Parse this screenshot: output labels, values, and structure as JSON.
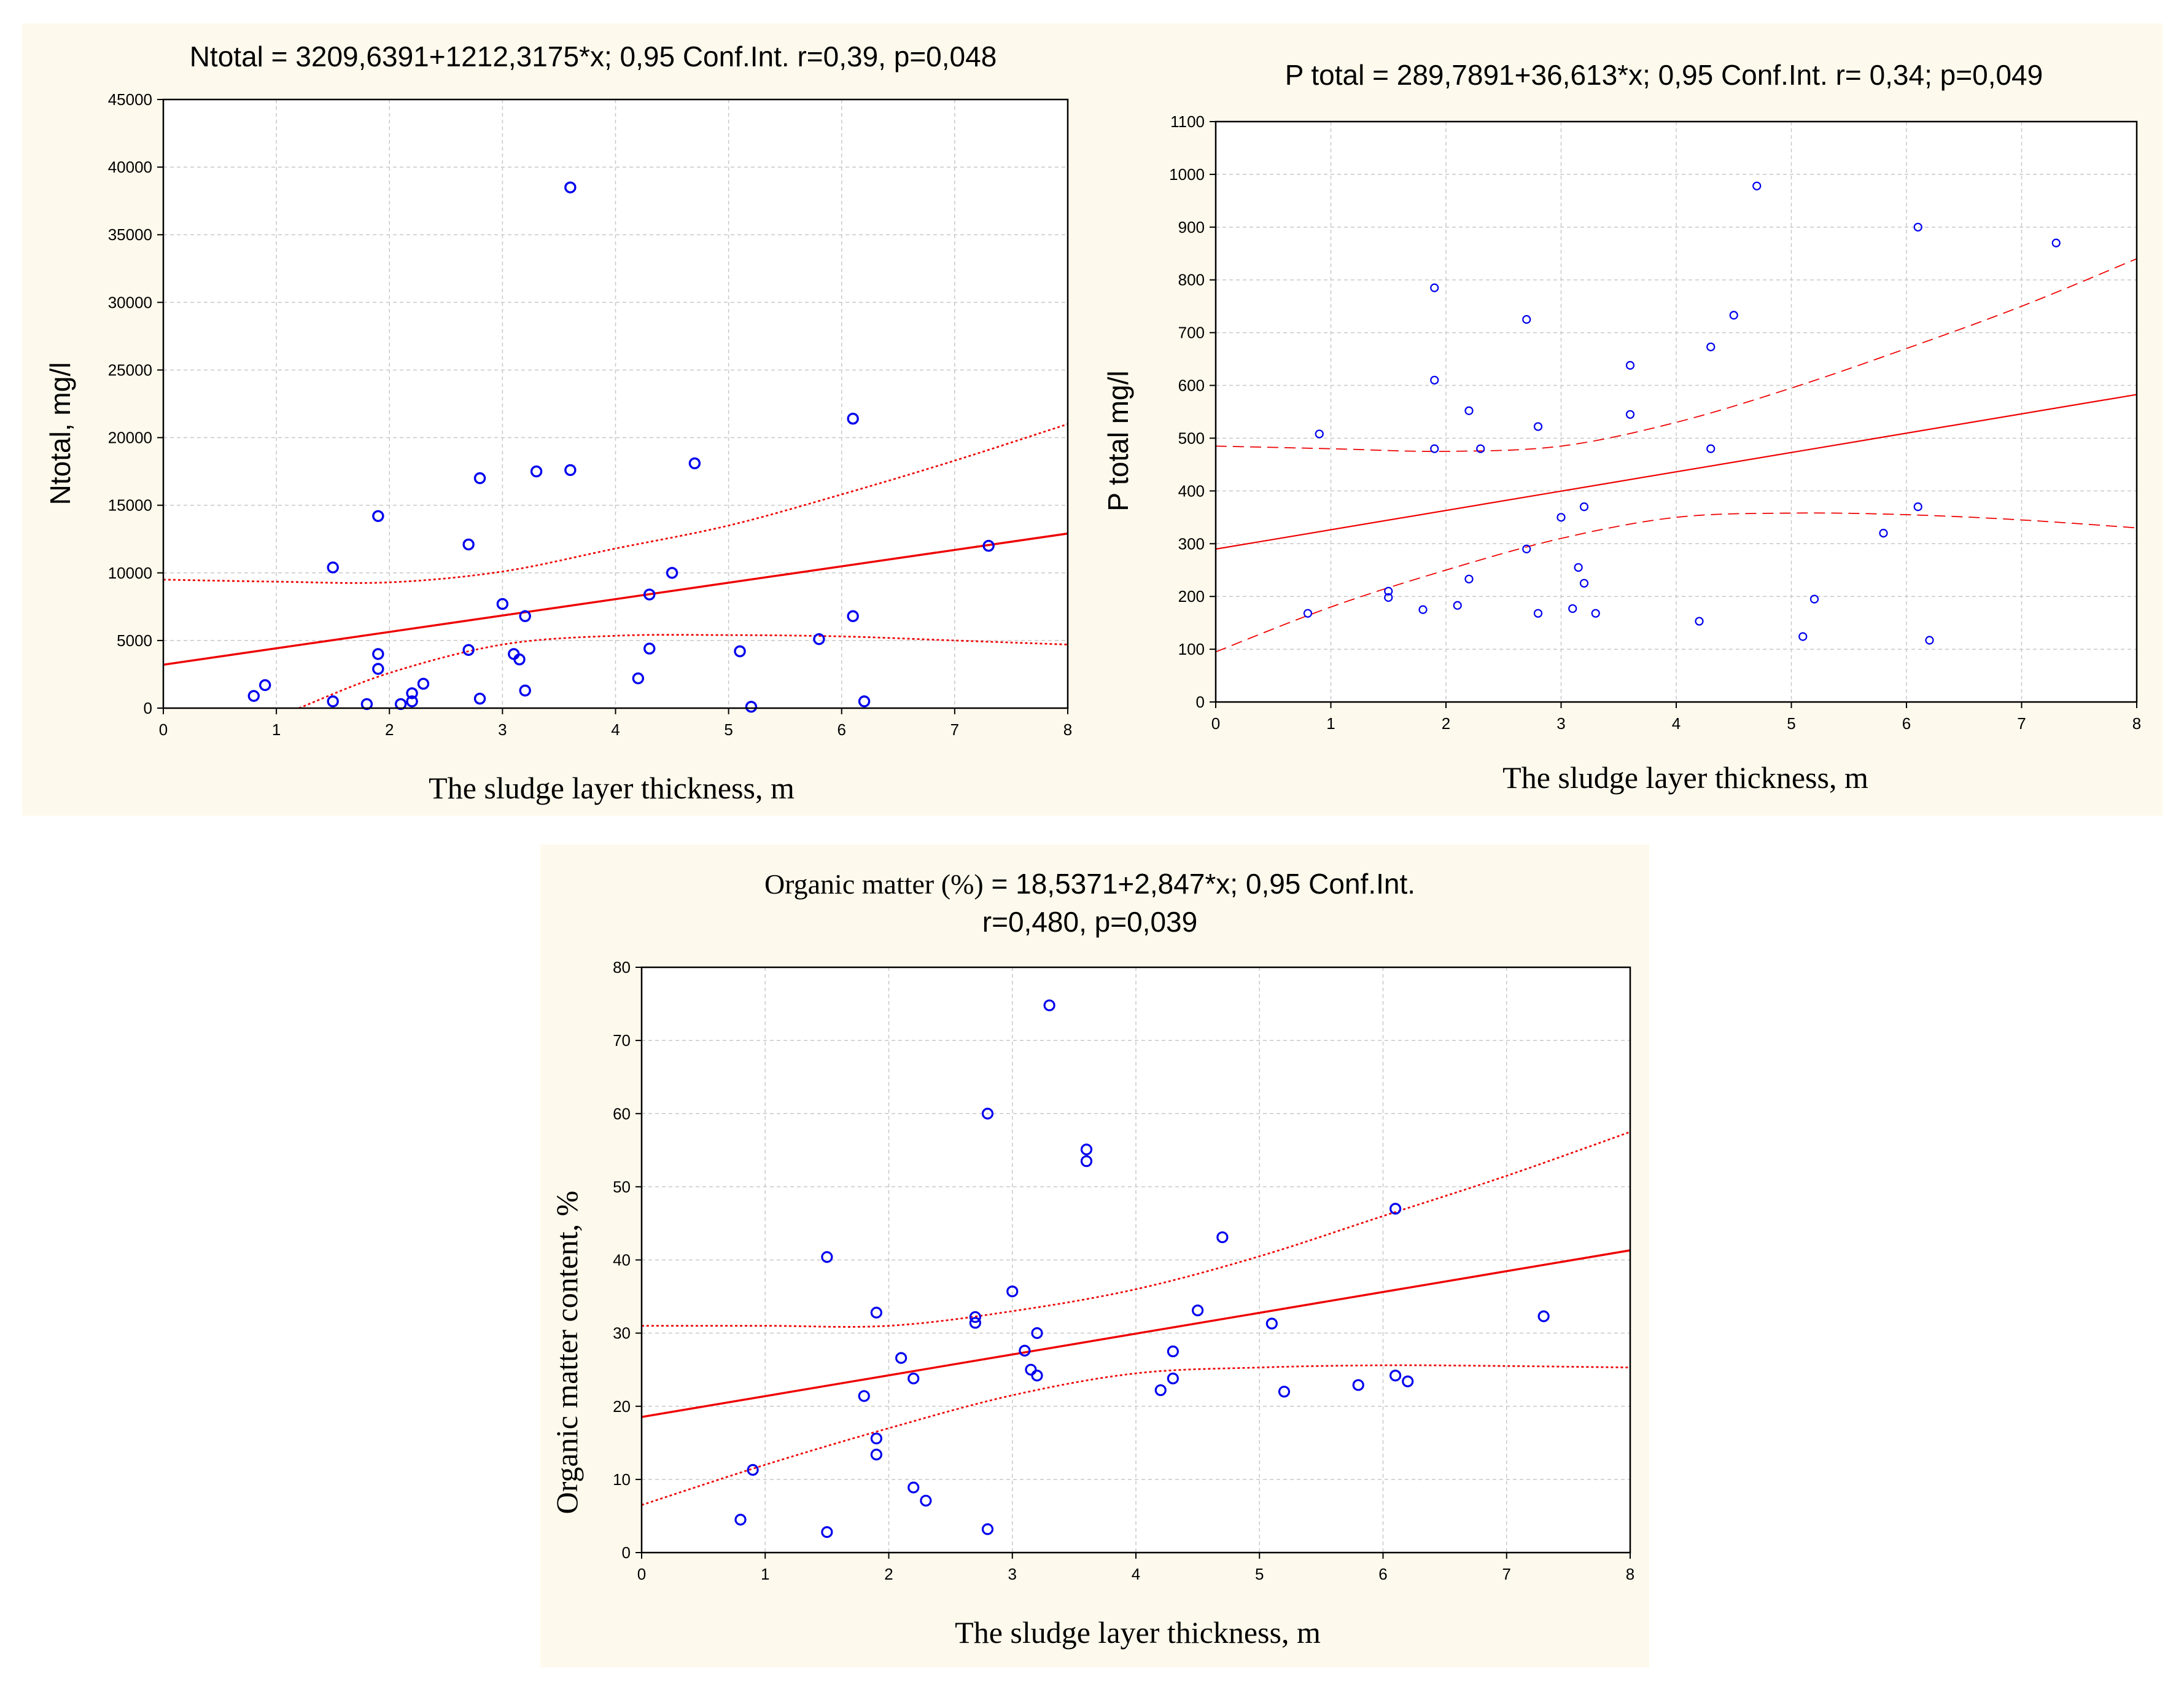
{
  "chart_data": [
    {
      "type": "scatter",
      "id": "n",
      "title": "Ntotal = 3209,6391+1212,3175*x; 0,95 Conf.Int. r=0,39, p=0,048",
      "xlabel": "The sludge layer thickness, m",
      "ylabel": "Ntotal, mg/l",
      "xlim": [
        0,
        8
      ],
      "ylim": [
        0,
        45000
      ],
      "xticks": [
        0,
        1,
        2,
        3,
        4,
        5,
        6,
        7,
        8
      ],
      "yticks": [
        0,
        5000,
        10000,
        15000,
        20000,
        25000,
        30000,
        35000,
        40000,
        45000
      ],
      "grid": true,
      "fit": {
        "intercept": 3209.6391,
        "slope": 1212.3175,
        "ci_style": "dotted"
      },
      "ci_upper": [
        [
          0,
          9500
        ],
        [
          1,
          9350
        ],
        [
          2,
          9300
        ],
        [
          3,
          10100
        ],
        [
          4,
          11800
        ],
        [
          5,
          13500
        ],
        [
          6,
          15800
        ],
        [
          7,
          18300
        ],
        [
          8,
          21000
        ]
      ],
      "ci_lower": [
        [
          1.2,
          0
        ],
        [
          2,
          2600
        ],
        [
          3,
          4700
        ],
        [
          4,
          5350
        ],
        [
          5,
          5400
        ],
        [
          6,
          5300
        ],
        [
          7,
          5000
        ],
        [
          8,
          4700
        ]
      ],
      "points": [
        [
          0.8,
          900
        ],
        [
          0.9,
          1700
        ],
        [
          1.5,
          10400
        ],
        [
          1.5,
          500
        ],
        [
          1.8,
          300
        ],
        [
          1.9,
          14200
        ],
        [
          1.9,
          4000
        ],
        [
          1.9,
          2900
        ],
        [
          2.1,
          300
        ],
        [
          2.2,
          500
        ],
        [
          2.2,
          1100
        ],
        [
          2.3,
          1800
        ],
        [
          2.7,
          12100
        ],
        [
          2.7,
          4300
        ],
        [
          2.8,
          17000
        ],
        [
          2.8,
          700
        ],
        [
          3.0,
          7700
        ],
        [
          3.1,
          4000
        ],
        [
          3.15,
          3600
        ],
        [
          3.2,
          6800
        ],
        [
          3.2,
          1300
        ],
        [
          3.3,
          17500
        ],
        [
          3.6,
          38500
        ],
        [
          3.6,
          17600
        ],
        [
          4.2,
          2200
        ],
        [
          4.3,
          8400
        ],
        [
          4.3,
          4400
        ],
        [
          4.5,
          10000
        ],
        [
          4.7,
          18100
        ],
        [
          5.1,
          4200
        ],
        [
          5.2,
          100
        ],
        [
          5.8,
          5100
        ],
        [
          6.1,
          21400
        ],
        [
          6.1,
          6800
        ],
        [
          6.2,
          500
        ],
        [
          7.3,
          12000
        ]
      ]
    },
    {
      "type": "scatter",
      "id": "p",
      "title": "P total  = 289,7891+36,613*x;  0,95 Conf.Int.  r= 0,34;  p=0,049",
      "xlabel": "The sludge layer thickness, m",
      "ylabel": "P total mg/l",
      "xlim": [
        0,
        8
      ],
      "ylim": [
        0,
        1100
      ],
      "xticks": [
        0,
        1,
        2,
        3,
        4,
        5,
        6,
        7,
        8
      ],
      "yticks": [
        0,
        100,
        200,
        300,
        400,
        500,
        600,
        700,
        800,
        900,
        1000,
        1100
      ],
      "grid": true,
      "fit": {
        "intercept": 289.7891,
        "slope": 36.613,
        "ci_style": "dashed"
      },
      "ci_upper": [
        [
          0,
          485
        ],
        [
          1,
          480
        ],
        [
          2,
          475
        ],
        [
          3,
          485
        ],
        [
          4,
          530
        ],
        [
          5,
          595
        ],
        [
          6,
          670
        ],
        [
          7,
          750
        ],
        [
          8,
          840
        ]
      ],
      "ci_lower": [
        [
          0,
          95
        ],
        [
          1,
          180
        ],
        [
          2,
          250
        ],
        [
          3,
          310
        ],
        [
          4,
          350
        ],
        [
          5,
          358
        ],
        [
          6,
          355
        ],
        [
          7,
          345
        ],
        [
          8,
          330
        ]
      ],
      "points": [
        [
          0.8,
          168
        ],
        [
          0.9,
          508
        ],
        [
          1.5,
          210
        ],
        [
          1.5,
          198
        ],
        [
          1.8,
          175
        ],
        [
          1.9,
          785
        ],
        [
          1.9,
          610
        ],
        [
          1.9,
          480
        ],
        [
          2.1,
          183
        ],
        [
          2.2,
          552
        ],
        [
          2.2,
          233
        ],
        [
          2.3,
          480
        ],
        [
          2.7,
          725
        ],
        [
          2.7,
          290
        ],
        [
          2.8,
          522
        ],
        [
          2.8,
          168
        ],
        [
          3.0,
          350
        ],
        [
          3.1,
          177
        ],
        [
          3.15,
          255
        ],
        [
          3.2,
          370
        ],
        [
          3.2,
          225
        ],
        [
          3.3,
          168
        ],
        [
          3.6,
          638
        ],
        [
          3.6,
          545
        ],
        [
          4.2,
          153
        ],
        [
          4.3,
          673
        ],
        [
          4.3,
          480
        ],
        [
          4.5,
          733
        ],
        [
          4.7,
          978
        ],
        [
          5.1,
          124
        ],
        [
          5.2,
          195
        ],
        [
          5.8,
          320
        ],
        [
          6.1,
          900
        ],
        [
          6.1,
          370
        ],
        [
          6.2,
          117
        ],
        [
          7.3,
          870
        ]
      ]
    },
    {
      "type": "scatter",
      "id": "o",
      "title_line1_prefix": "Organic matter (%)",
      "title_line1_rest": "  = 18,5371+2,847*x; 0,95 Conf.Int.",
      "title_line2": "r=0,480, p=0,039",
      "xlabel": "The sludge layer thickness, m",
      "ylabel": "Organic matter content, %",
      "xlim": [
        0,
        8
      ],
      "ylim": [
        0,
        80
      ],
      "xticks": [
        0,
        1,
        2,
        3,
        4,
        5,
        6,
        7,
        8
      ],
      "yticks": [
        0,
        10,
        20,
        30,
        40,
        50,
        60,
        70,
        80
      ],
      "grid": true,
      "fit": {
        "intercept": 18.5371,
        "slope": 2.847,
        "ci_style": "dotted"
      },
      "ci_upper": [
        [
          0,
          31
        ],
        [
          1,
          31
        ],
        [
          2,
          31
        ],
        [
          3,
          33
        ],
        [
          4,
          36
        ],
        [
          5,
          40.5
        ],
        [
          6,
          46
        ],
        [
          7,
          51.5
        ],
        [
          8,
          57.5
        ]
      ],
      "ci_lower": [
        [
          0,
          6.5
        ],
        [
          1,
          12
        ],
        [
          2,
          17
        ],
        [
          3,
          21.5
        ],
        [
          4,
          24.5
        ],
        [
          5,
          25.3
        ],
        [
          6,
          25.6
        ],
        [
          7,
          25.5
        ],
        [
          8,
          25.3
        ]
      ],
      "points": [
        [
          0.8,
          4.5
        ],
        [
          0.9,
          11.3
        ],
        [
          1.5,
          40.4
        ],
        [
          1.5,
          2.8
        ],
        [
          1.8,
          21.4
        ],
        [
          1.9,
          32.8
        ],
        [
          1.9,
          15.6
        ],
        [
          1.9,
          13.4
        ],
        [
          2.1,
          26.6
        ],
        [
          2.2,
          23.8
        ],
        [
          2.2,
          8.9
        ],
        [
          2.3,
          7.1
        ],
        [
          2.7,
          32.2
        ],
        [
          2.7,
          31.4
        ],
        [
          2.8,
          60.0
        ],
        [
          2.8,
          3.2
        ],
        [
          3.0,
          35.7
        ],
        [
          3.1,
          27.6
        ],
        [
          3.15,
          25.0
        ],
        [
          3.2,
          30.0
        ],
        [
          3.2,
          24.2
        ],
        [
          3.3,
          74.8
        ],
        [
          3.6,
          55.1
        ],
        [
          3.6,
          53.5
        ],
        [
          4.2,
          22.2
        ],
        [
          4.3,
          27.5
        ],
        [
          4.3,
          23.8
        ],
        [
          4.5,
          33.1
        ],
        [
          4.7,
          43.1
        ],
        [
          5.1,
          31.3
        ],
        [
          5.2,
          22.0
        ],
        [
          5.8,
          22.9
        ],
        [
          6.1,
          47.0
        ],
        [
          6.1,
          24.2
        ],
        [
          6.2,
          23.4
        ],
        [
          7.3,
          32.3
        ]
      ]
    }
  ],
  "colors": {
    "panel_bg": "#fdf9ec",
    "point": "#0000ee",
    "fit": "#ee0000",
    "grid": "#c8c8c8"
  }
}
